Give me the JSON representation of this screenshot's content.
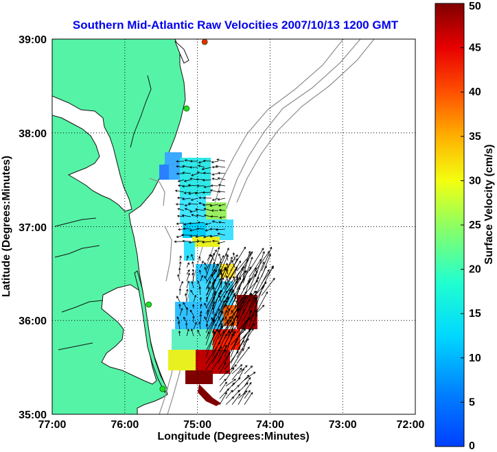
{
  "title": "Southern Mid-Atlantic Raw Velocities 2007/10/13 1200 GMT",
  "title_color": "#0000ee",
  "xlabel": "Longitude (Degrees:Minutes)",
  "ylabel": "Latitude (Degrees:Minutes)",
  "x_ticks": [
    "77:00",
    "76:00",
    "75:00",
    "74:00",
    "73:00",
    "72:00"
  ],
  "y_ticks": [
    "39:00",
    "38:00",
    "37:00",
    "36:00",
    "35:00"
  ],
  "colorbar": {
    "label": "Surface Velocity (cm/s)",
    "ticks": [
      "0",
      "5",
      "10",
      "15",
      "20",
      "25",
      "30",
      "35",
      "40",
      "45",
      "50"
    ],
    "range": [
      0,
      50
    ],
    "colormap": "jet"
  },
  "colors": {
    "land": "#55f3a6",
    "coastline": "#111111",
    "bathymetry": "#8c8c8c",
    "grid": "#000000",
    "station_marker": "#22dd22",
    "station_active": "#ff2200"
  },
  "chart_data": {
    "type": "map",
    "xlim": [
      -77,
      -72
    ],
    "ylim": [
      35,
      39
    ],
    "grid": true,
    "stations": [
      {
        "lon": -74.9,
        "lat": 38.97,
        "state": "active"
      },
      {
        "lon": -75.15,
        "lat": 38.26,
        "state": "normal"
      },
      {
        "lon": -75.67,
        "lat": 36.17,
        "state": "normal"
      },
      {
        "lon": -75.48,
        "lat": 35.27,
        "state": "normal"
      }
    ]
  }
}
